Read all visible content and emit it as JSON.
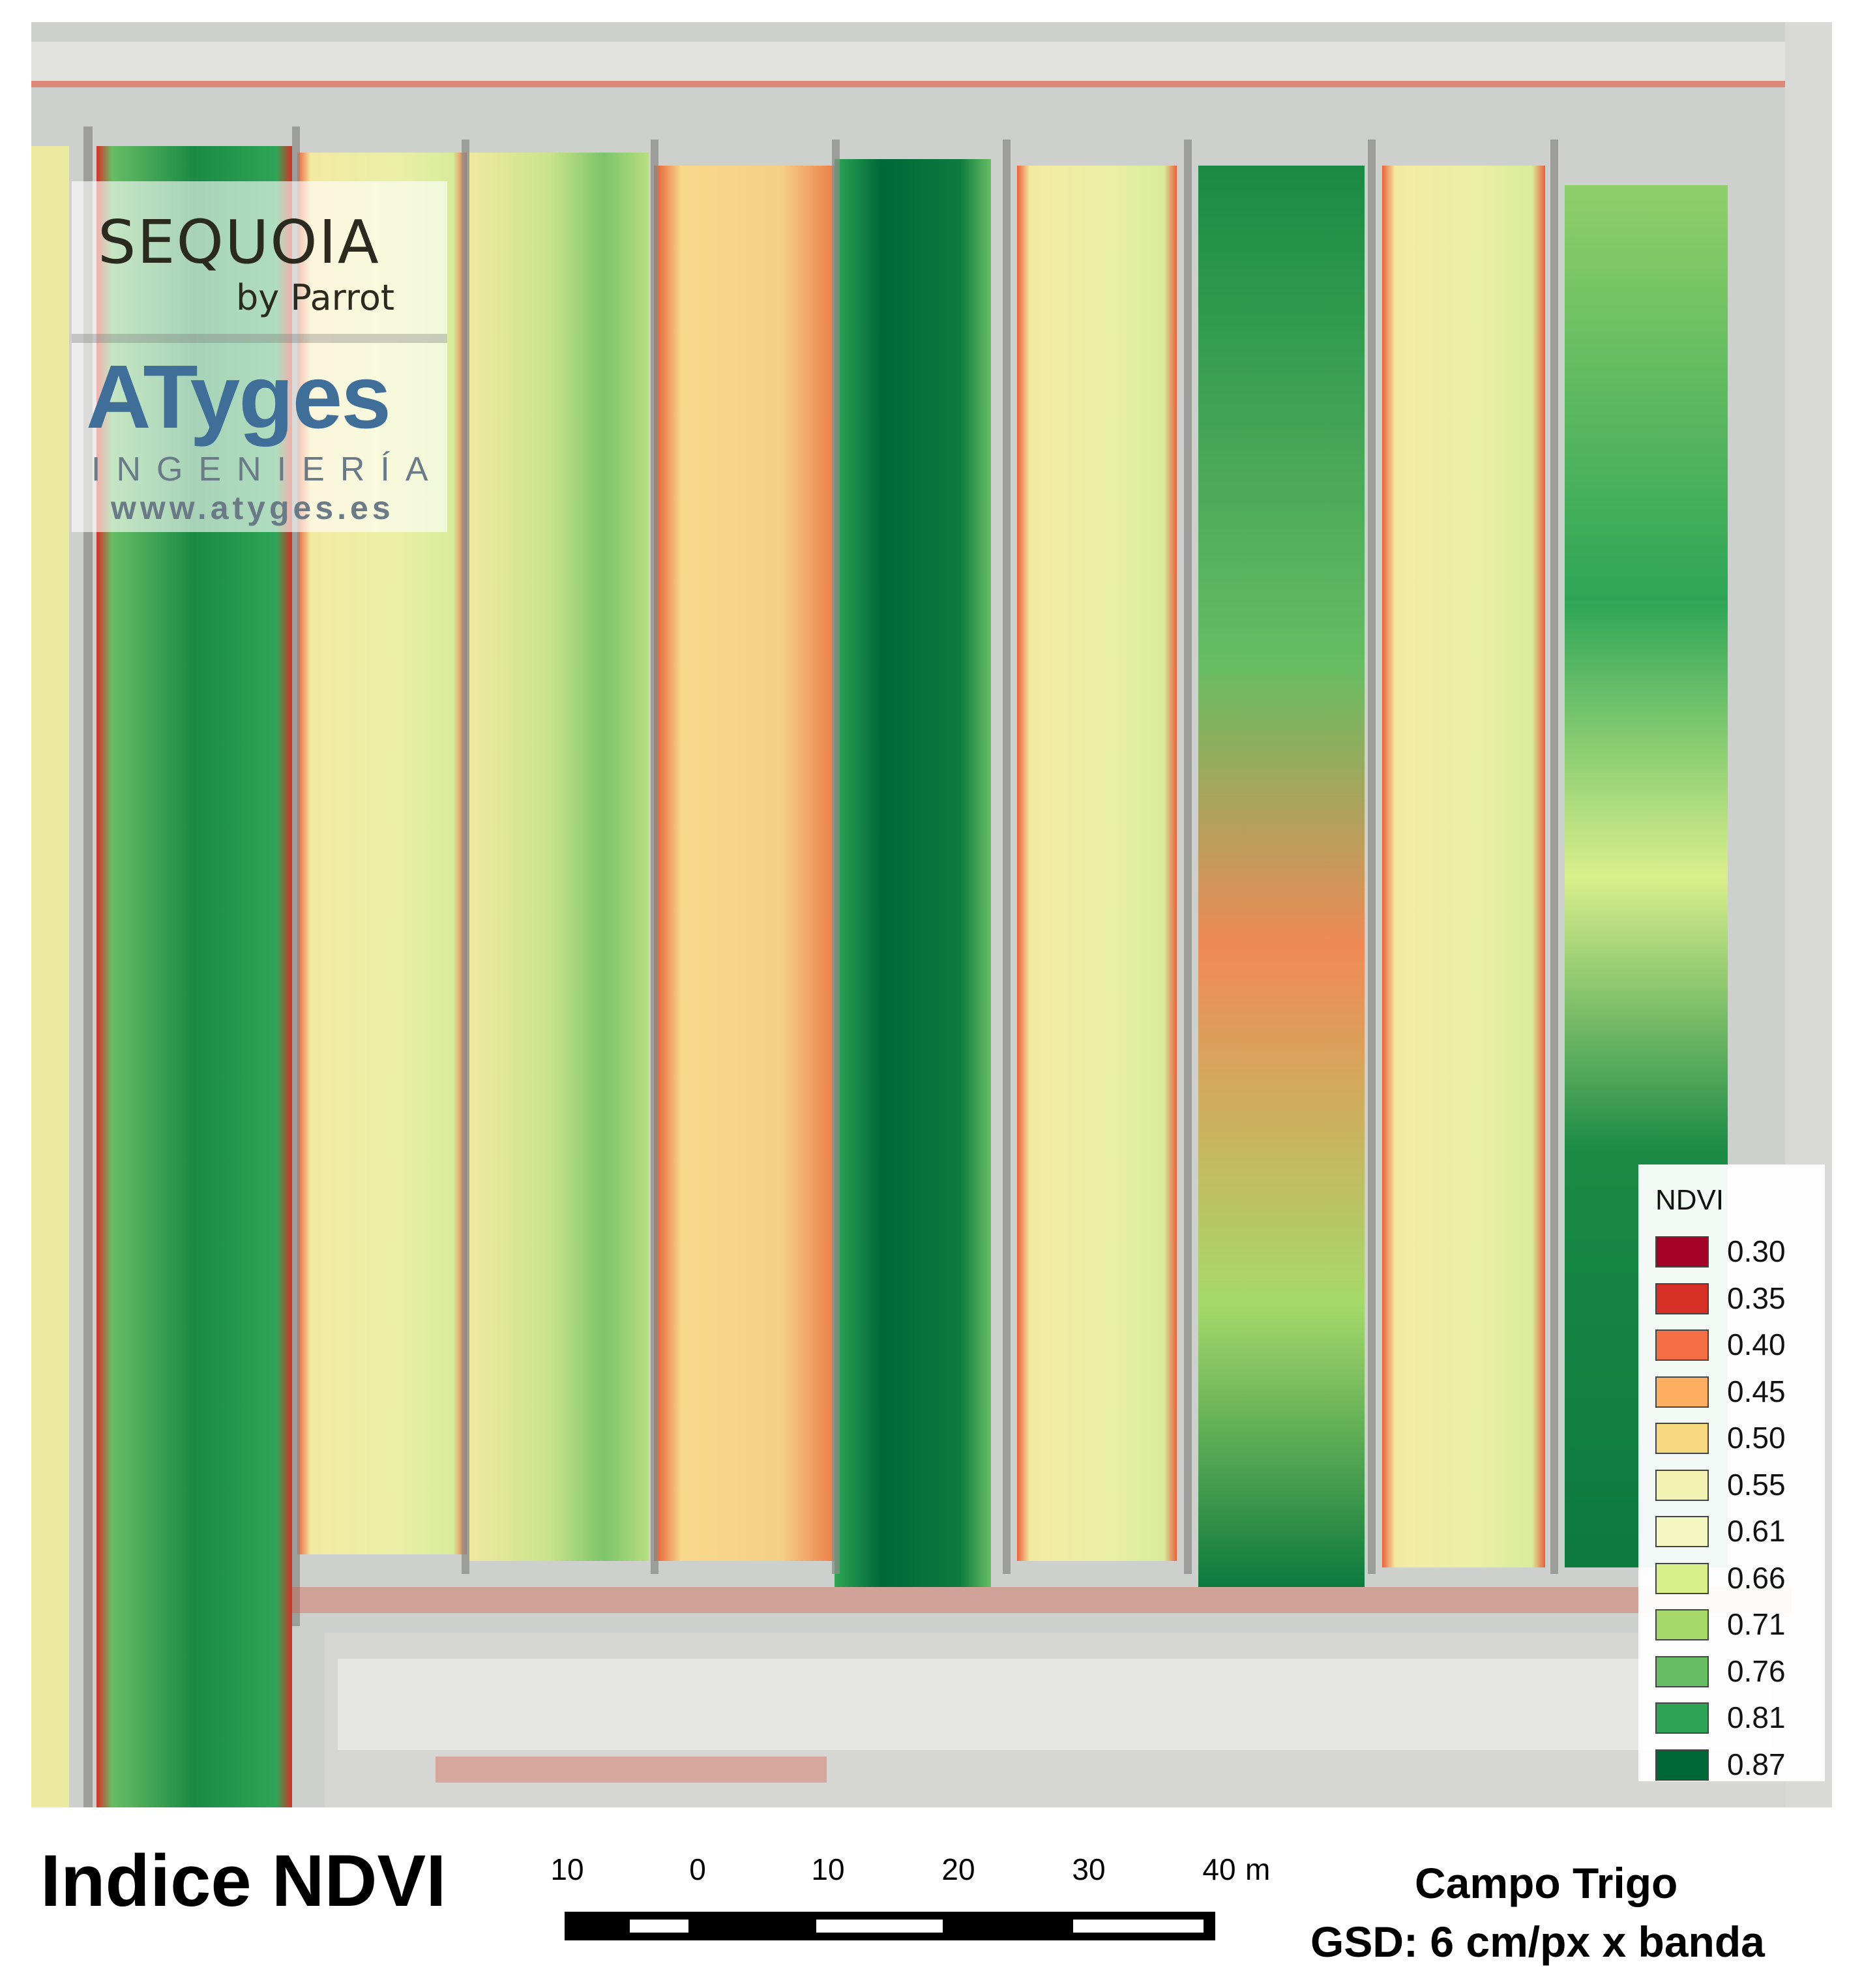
{
  "map": {
    "title": "Indice NDVI",
    "field_name": "Campo Trigo",
    "gsd_text": "GSD: 6 cm/px x banda"
  },
  "logos": {
    "sequoia": "SEQUOIA",
    "sequoia_by": "by Parrot",
    "atyges": "ATyges",
    "ingenieria": "INGENIERÍA",
    "website": "www.atyges.es"
  },
  "legend": {
    "title": "NDVI",
    "classes": [
      {
        "value": "0.30",
        "color": "#a50026"
      },
      {
        "value": "0.35",
        "color": "#d73027"
      },
      {
        "value": "0.40",
        "color": "#f46d43"
      },
      {
        "value": "0.45",
        "color": "#fdae61"
      },
      {
        "value": "0.50",
        "color": "#f6d97f"
      },
      {
        "value": "0.55",
        "color": "#f2f3b2"
      },
      {
        "value": "0.61",
        "color": "#f3f6c1"
      },
      {
        "value": "0.66",
        "color": "#d9ef8b"
      },
      {
        "value": "0.71",
        "color": "#a6d96a"
      },
      {
        "value": "0.76",
        "color": "#66bd63"
      },
      {
        "value": "0.81",
        "color": "#2ea556"
      },
      {
        "value": "0.87",
        "color": "#006837"
      }
    ]
  },
  "scale_bar": {
    "labels": [
      "10",
      "0",
      "10",
      "20",
      "30",
      "40"
    ],
    "unit": "m"
  }
}
